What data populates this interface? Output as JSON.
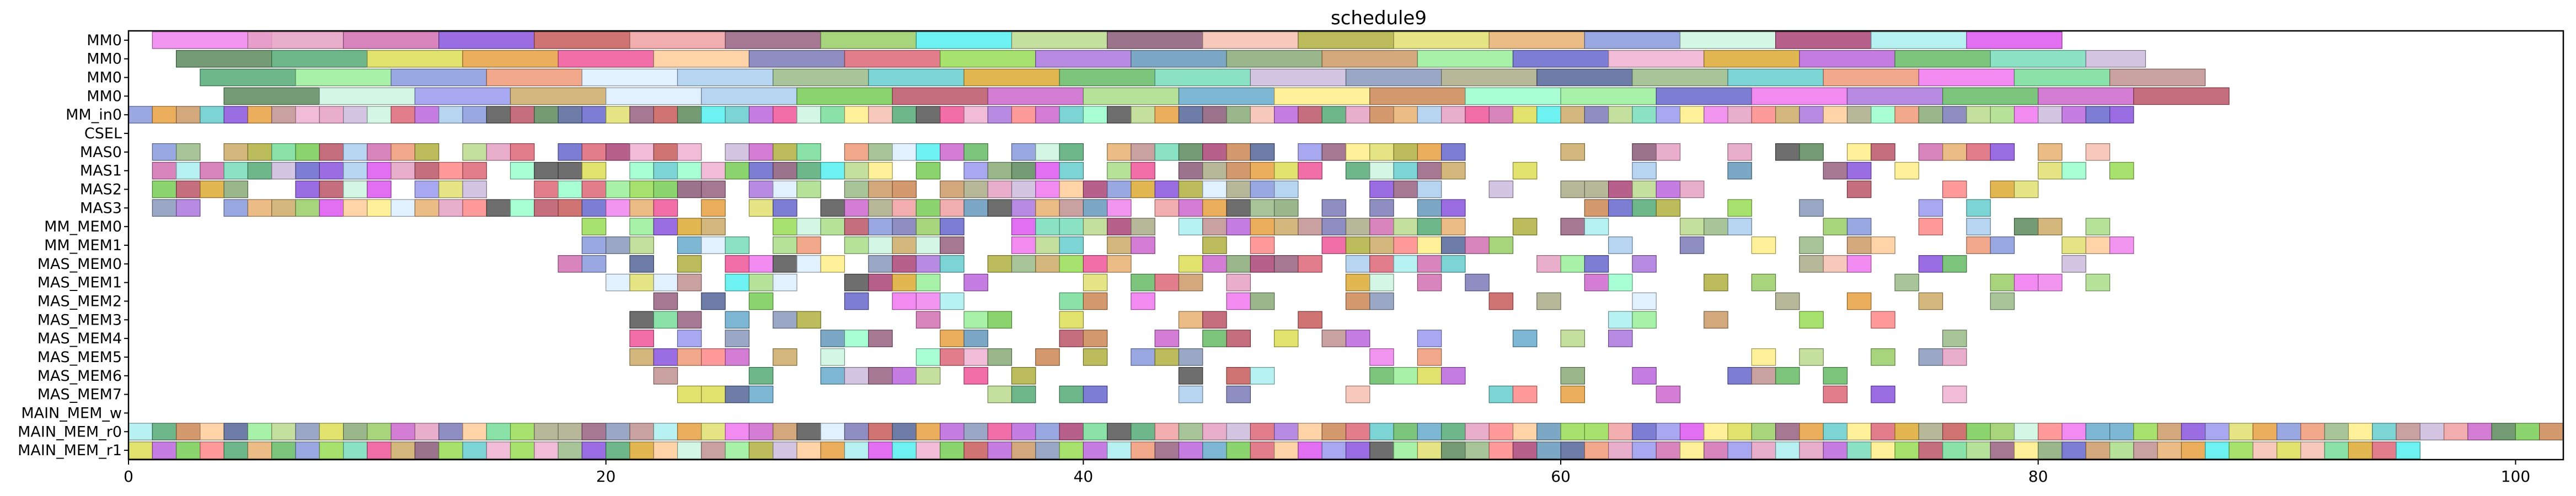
{
  "chart_data": {
    "type": "gantt",
    "title": "schedule9",
    "rows": [
      "MM0",
      "MM0",
      "MM0",
      "MM0",
      "MM_in0",
      "CSEL",
      "MAS0",
      "MAS1",
      "MAS2",
      "MAS3",
      "MM_MEM0",
      "MM_MEM1",
      "MAS_MEM0",
      "MAS_MEM1",
      "MAS_MEM2",
      "MAS_MEM3",
      "MAS_MEM4",
      "MAS_MEM5",
      "MAS_MEM6",
      "MAS_MEM7",
      "MAIN_MEM_w",
      "MAIN_MEM_r0",
      "MAIN_MEM_r1"
    ],
    "xlim": [
      0,
      102
    ],
    "xticks": [
      0,
      20,
      40,
      60,
      80,
      100
    ],
    "palette": [
      "#ee82ee",
      "#e6a0c4",
      "#d070b0",
      "#8855dd",
      "#c85a5a",
      "#f0a0a0",
      "#986080",
      "#99cc66",
      "#55eeee",
      "#bbd98e",
      "#8a5a78",
      "#f5c0b0",
      "#b0b040",
      "#e0e070",
      "#e8b070",
      "#8899dd",
      "#ccf5e0",
      "#aa4477",
      "#aaeeee",
      "#dd55ee",
      "#5c8a5c",
      "#55aa77",
      "#dddd55",
      "#e8a040",
      "#ee5599",
      "#ffcc99",
      "#7a7ab8",
      "#dd6677",
      "#99dd55",
      "#aa77dd",
      "#6699bb",
      "#88aa77",
      "#cc9966",
      "#99ee99",
      "#6666cc",
      "#eeb0d0",
      "#ddaa33",
      "#bb66dd",
      "#66bb66",
      "#77ddbb",
      "#ccbbdd",
      "#8899bb",
      "#aaaa88",
      "#556699",
      "#99bb88",
      "#66cccc",
      "#ee9977",
      "#ee77ee",
      "#77dd99",
      "#c09090",
      "#9999ee",
      "#ccaa66",
      "#ddeeff",
      "#aaccee",
      "#77cc55",
      "#bb5566",
      "#cc66cc",
      "#aadd88",
      "#66aacc",
      "#ffee88",
      "#cc8855",
      "#99ffcc",
      "#555555",
      "#ff8888"
    ],
    "tracks": [
      {
        "d": 4.0,
        "x": [
          [
            1.0,
            5.0,
            0
          ],
          [
            5.0,
            4.0,
            1
          ],
          [
            9.0,
            4.0,
            2
          ],
          [
            13.0,
            4.0,
            3
          ],
          [
            17.0,
            4.0,
            4
          ],
          [
            21.0,
            4.0,
            5
          ],
          [
            25.0,
            4.0,
            6
          ],
          [
            29.0,
            4.0,
            7
          ],
          [
            33.0,
            4.0,
            8
          ],
          [
            37.0,
            4.0,
            9
          ],
          [
            41.0,
            4.0,
            10
          ],
          [
            45.0,
            4.0,
            11
          ],
          [
            49.0,
            4.0,
            12
          ],
          [
            53.0,
            4.0,
            13
          ],
          [
            57.0,
            4.0,
            14
          ],
          [
            61.0,
            4.0,
            15
          ],
          [
            65.0,
            4.0,
            16
          ],
          [
            69.0,
            4.0,
            17
          ],
          [
            73.0,
            4.0,
            18
          ],
          [
            77.0,
            4.0,
            19
          ]
        ]
      },
      {
        "x": [
          [
            2.0,
            4.0,
            20
          ],
          [
            6.0,
            4.0,
            21
          ],
          [
            10.0,
            4.0,
            22
          ],
          [
            14.0,
            4.0,
            23
          ],
          [
            18.0,
            4.0,
            24
          ],
          [
            22.0,
            4.0,
            25
          ],
          [
            26.0,
            4.0,
            26
          ],
          [
            30.0,
            4.0,
            27
          ],
          [
            34.0,
            4.0,
            28
          ],
          [
            38.0,
            4.0,
            29
          ],
          [
            42.0,
            4.0,
            30
          ],
          [
            46.0,
            4.0,
            31
          ],
          [
            50.0,
            4.0,
            32
          ],
          [
            54.0,
            4.0,
            33
          ],
          [
            58.0,
            4.0,
            34
          ],
          [
            62.0,
            4.0,
            35
          ],
          [
            66.0,
            4.0,
            36
          ],
          [
            70.0,
            4.0,
            37
          ],
          [
            74.0,
            4.0,
            38
          ],
          [
            78.0,
            4.0,
            39
          ],
          [
            82.0,
            2.5,
            40
          ]
        ]
      },
      {
        "x": [
          [
            3.0,
            4.0,
            21
          ],
          [
            7.0,
            4.0,
            33
          ],
          [
            11.0,
            4.0,
            15
          ],
          [
            15.0,
            4.0,
            46
          ],
          [
            19.0,
            4.0,
            52
          ],
          [
            23.0,
            4.0,
            53
          ],
          [
            27.0,
            4.0,
            44
          ],
          [
            31.0,
            4.0,
            45
          ],
          [
            35.0,
            4.0,
            36
          ],
          [
            39.0,
            4.0,
            38
          ],
          [
            43.0,
            4.0,
            39
          ],
          [
            47.0,
            4.0,
            40
          ],
          [
            51.0,
            4.0,
            41
          ],
          [
            55.0,
            4.0,
            42
          ],
          [
            59.0,
            4.0,
            43
          ],
          [
            63.0,
            4.0,
            44
          ],
          [
            67.0,
            4.0,
            45
          ],
          [
            71.0,
            4.0,
            46
          ],
          [
            75.0,
            4.0,
            47
          ],
          [
            79.0,
            4.0,
            48
          ],
          [
            83.0,
            4.0,
            49
          ]
        ]
      },
      {
        "x": [
          [
            4.0,
            4.0,
            20
          ],
          [
            8.0,
            4.0,
            16
          ],
          [
            12.0,
            4.0,
            50
          ],
          [
            16.0,
            4.0,
            51
          ],
          [
            20.0,
            4.0,
            52
          ],
          [
            24.0,
            4.0,
            53
          ],
          [
            28.0,
            4.0,
            54
          ],
          [
            32.0,
            4.0,
            55
          ],
          [
            36.0,
            4.0,
            56
          ],
          [
            40.0,
            4.0,
            57
          ],
          [
            44.0,
            4.0,
            58
          ],
          [
            48.0,
            4.0,
            59
          ],
          [
            52.0,
            4.0,
            60
          ],
          [
            56.0,
            4.0,
            61
          ],
          [
            60.0,
            4.0,
            33
          ],
          [
            64.0,
            4.0,
            34
          ],
          [
            68.0,
            4.0,
            47
          ],
          [
            72.0,
            4.0,
            29
          ],
          [
            76.0,
            4.0,
            38
          ],
          [
            80.0,
            4.0,
            56
          ],
          [
            84.0,
            4.0,
            55
          ]
        ]
      },
      {
        "dense": true,
        "start": 0.0,
        "end": 84.0,
        "step": 1.0,
        "w": 1.0,
        "seed": 1
      }
    ]
  }
}
